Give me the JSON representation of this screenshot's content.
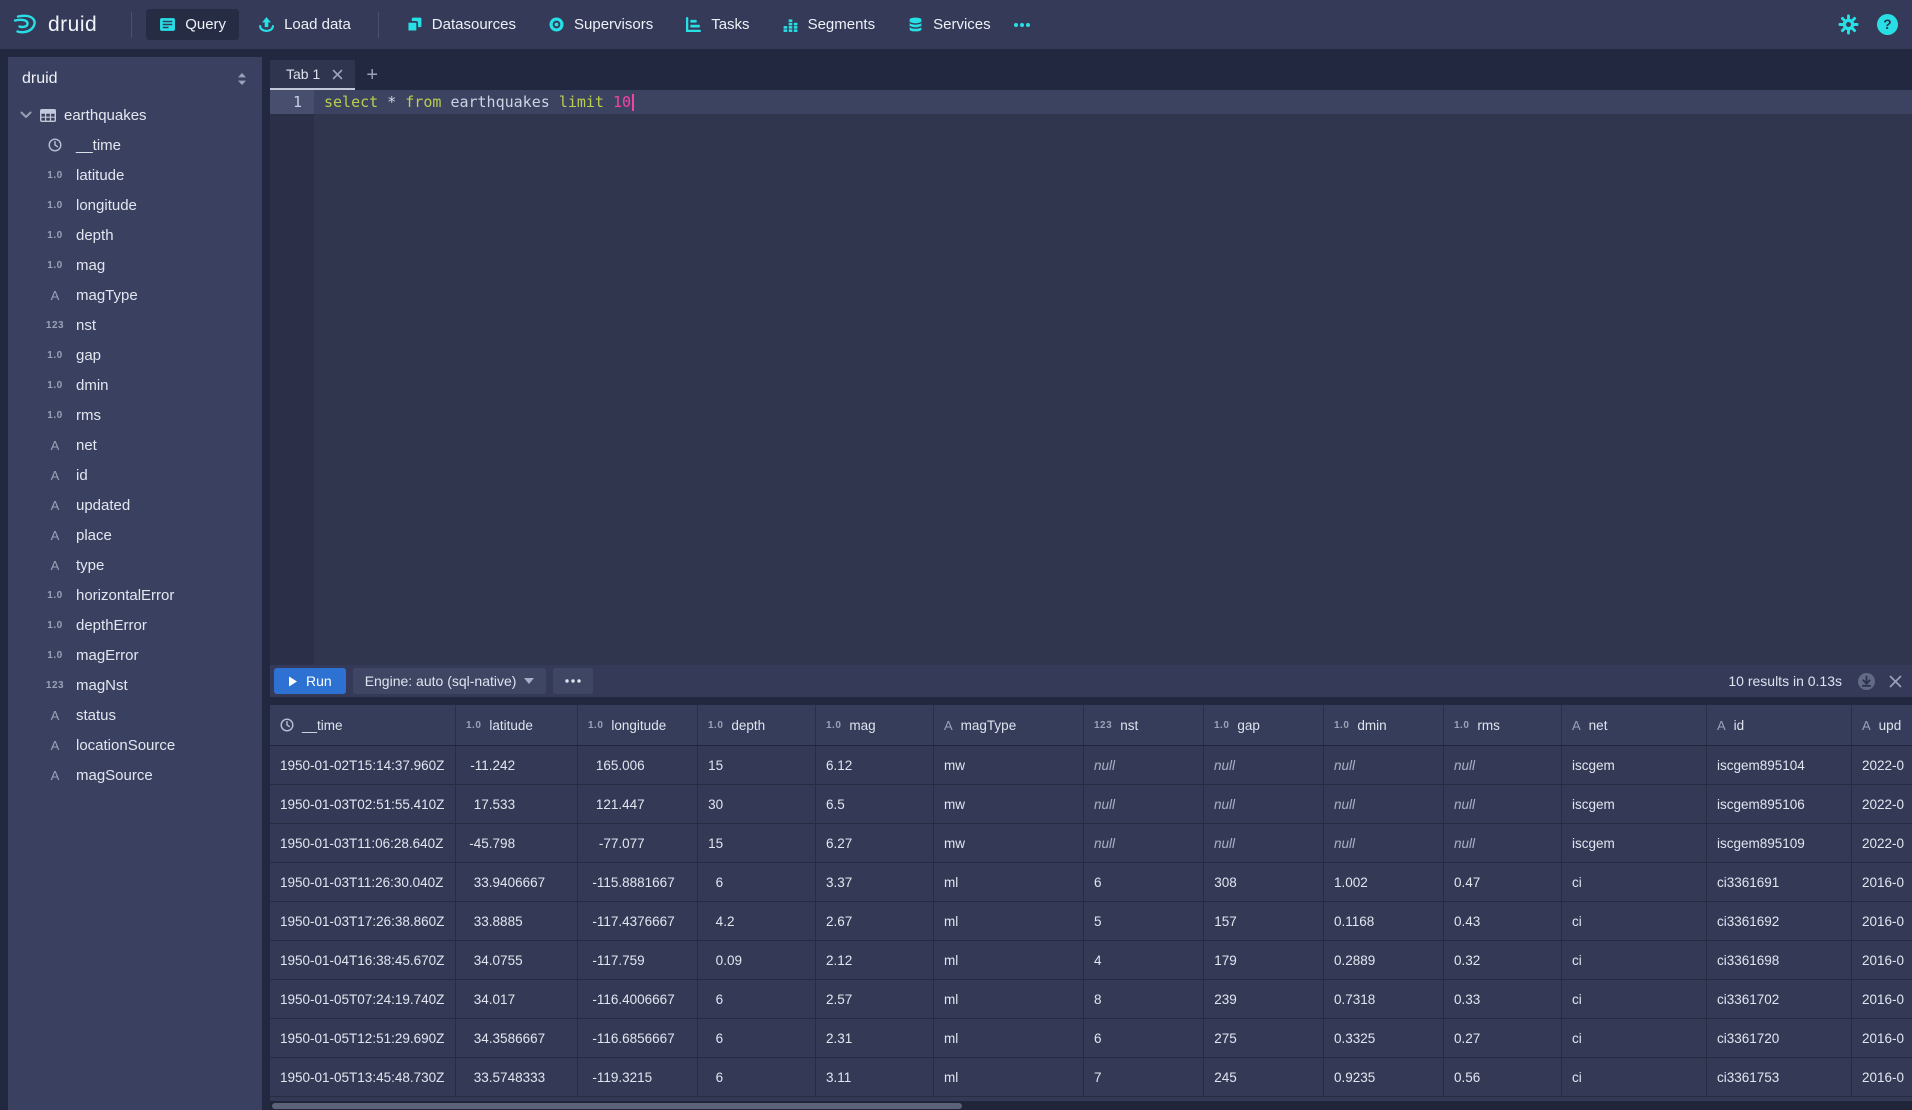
{
  "navbar": {
    "brand": "druid",
    "primary_items": [
      {
        "label": "Query",
        "icon": "query-icon",
        "active": true
      },
      {
        "label": "Load data",
        "icon": "load-data-icon",
        "active": false
      }
    ],
    "secondary_items": [
      {
        "label": "Datasources",
        "icon": "datasources-icon",
        "active": false
      },
      {
        "label": "Supervisors",
        "icon": "supervisors-icon",
        "active": false
      },
      {
        "label": "Tasks",
        "icon": "tasks-icon",
        "active": false
      },
      {
        "label": "Segments",
        "icon": "segments-icon",
        "active": false
      },
      {
        "label": "Services",
        "icon": "services-icon",
        "active": false
      }
    ],
    "more_icon": "more-icon",
    "right_icons": [
      "gear-icon",
      "help-icon"
    ]
  },
  "sidebar": {
    "schema": "druid",
    "table": "earthquakes",
    "columns": [
      {
        "name": "__time",
        "type": "time"
      },
      {
        "name": "latitude",
        "type": "float"
      },
      {
        "name": "longitude",
        "type": "float"
      },
      {
        "name": "depth",
        "type": "float"
      },
      {
        "name": "mag",
        "type": "float"
      },
      {
        "name": "magType",
        "type": "string"
      },
      {
        "name": "nst",
        "type": "int"
      },
      {
        "name": "gap",
        "type": "float"
      },
      {
        "name": "dmin",
        "type": "float"
      },
      {
        "name": "rms",
        "type": "float"
      },
      {
        "name": "net",
        "type": "string"
      },
      {
        "name": "id",
        "type": "string"
      },
      {
        "name": "updated",
        "type": "string"
      },
      {
        "name": "place",
        "type": "string"
      },
      {
        "name": "type",
        "type": "string"
      },
      {
        "name": "horizontalError",
        "type": "float"
      },
      {
        "name": "depthError",
        "type": "float"
      },
      {
        "name": "magError",
        "type": "float"
      },
      {
        "name": "magNst",
        "type": "int"
      },
      {
        "name": "status",
        "type": "string"
      },
      {
        "name": "locationSource",
        "type": "string"
      },
      {
        "name": "magSource",
        "type": "string"
      }
    ]
  },
  "tabs": {
    "active_label": "Tab 1"
  },
  "editor": {
    "line_number": "1",
    "query_tokens": [
      {
        "text": "select",
        "kind": "keyword"
      },
      {
        "text": " ",
        "kind": "plain"
      },
      {
        "text": "*",
        "kind": "operator"
      },
      {
        "text": " ",
        "kind": "plain"
      },
      {
        "text": "from",
        "kind": "keyword"
      },
      {
        "text": " ",
        "kind": "plain"
      },
      {
        "text": "earthquakes",
        "kind": "identifier"
      },
      {
        "text": " ",
        "kind": "plain"
      },
      {
        "text": "limit",
        "kind": "keyword"
      },
      {
        "text": " ",
        "kind": "plain"
      },
      {
        "text": "10",
        "kind": "number"
      }
    ]
  },
  "run_bar": {
    "run_label": "Run",
    "engine_label": "Engine: auto (sql-native)",
    "results_info": "10 results in 0.13s"
  },
  "results": {
    "columns": [
      {
        "name": "__time",
        "type": "time"
      },
      {
        "name": "latitude",
        "type": "float"
      },
      {
        "name": "longitude",
        "type": "float"
      },
      {
        "name": "depth",
        "type": "float"
      },
      {
        "name": "mag",
        "type": "float"
      },
      {
        "name": "magType",
        "type": "string"
      },
      {
        "name": "nst",
        "type": "int"
      },
      {
        "name": "gap",
        "type": "float"
      },
      {
        "name": "dmin",
        "type": "float"
      },
      {
        "name": "rms",
        "type": "float"
      },
      {
        "name": "net",
        "type": "string"
      },
      {
        "name": "id",
        "type": "string"
      },
      {
        "name": "upd",
        "type": "string"
      }
    ],
    "rows": [
      [
        "1950-01-02T15:14:37.960Z",
        "-11.242",
        "165.006",
        "15",
        "6.12",
        "mw",
        "null",
        "null",
        "null",
        "null",
        "iscgem",
        "iscgem895104",
        "2022-0"
      ],
      [
        "1950-01-03T02:51:55.410Z",
        "17.533",
        "121.447",
        "30",
        "6.5",
        "mw",
        "null",
        "null",
        "null",
        "null",
        "iscgem",
        "iscgem895106",
        "2022-0"
      ],
      [
        "1950-01-03T11:06:28.640Z",
        "-45.798",
        "-77.077",
        "15",
        "6.27",
        "mw",
        "null",
        "null",
        "null",
        "null",
        "iscgem",
        "iscgem895109",
        "2022-0"
      ],
      [
        "1950-01-03T11:26:30.040Z",
        "33.9406667",
        "-115.8881667",
        "6",
        "3.37",
        "ml",
        "6",
        "308",
        "1.002",
        "0.47",
        "ci",
        "ci3361691",
        "2016-0"
      ],
      [
        "1950-01-03T17:26:38.860Z",
        "33.8885",
        "-117.4376667",
        "4.2",
        "2.67",
        "ml",
        "5",
        "157",
        "0.1168",
        "0.43",
        "ci",
        "ci3361692",
        "2016-0"
      ],
      [
        "1950-01-04T16:38:45.670Z",
        "34.0755",
        "-117.759",
        "0.09",
        "2.12",
        "ml",
        "4",
        "179",
        "0.2889",
        "0.32",
        "ci",
        "ci3361698",
        "2016-0"
      ],
      [
        "1950-01-05T07:24:19.740Z",
        "34.017",
        "-116.4006667",
        "6",
        "2.57",
        "ml",
        "8",
        "239",
        "0.7318",
        "0.33",
        "ci",
        "ci3361702",
        "2016-0"
      ],
      [
        "1950-01-05T12:51:29.690Z",
        "34.3586667",
        "-116.6856667",
        "6",
        "2.31",
        "ml",
        "6",
        "275",
        "0.3325",
        "0.27",
        "ci",
        "ci3361720",
        "2016-0"
      ],
      [
        "1950-01-05T13:45:48.730Z",
        "33.5748333",
        "-119.3215",
        "6",
        "3.11",
        "ml",
        "7",
        "245",
        "0.9235",
        "0.56",
        "ci",
        "ci3361753",
        "2016-0"
      ]
    ]
  },
  "colors": {
    "accent": "#29dfe6",
    "run_button": "#2d72d2",
    "sql_keyword": "#bacd4f",
    "sql_number": "#f145a5"
  }
}
